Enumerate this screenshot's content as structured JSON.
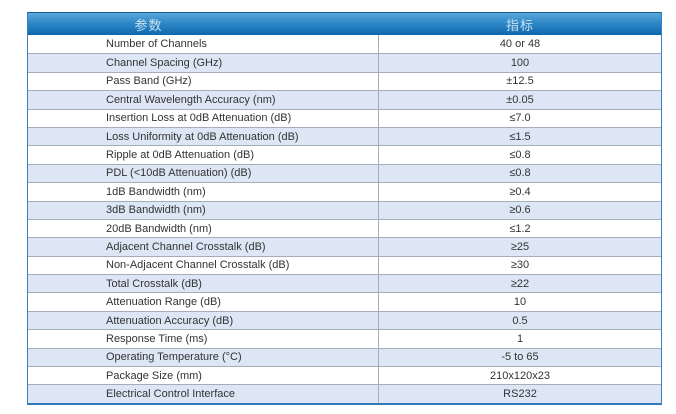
{
  "theme": {
    "header_gradient_top": "#58A8DA",
    "header_gradient_bottom": "#0D67AE",
    "header_top_line_color": "#1A5E97",
    "header_text_color": "#CCE2F2",
    "outer_border_color": "#3A80C0",
    "outer_border_bottom_color": "#2F7ABD",
    "row_bg": "#FFFFFF",
    "row_alt_bg": "#DCE6F5",
    "grid_line_color": "#A6ADB8",
    "text_color": "#333333"
  },
  "table": {
    "header": {
      "parameter_label": "参数",
      "value_label": "指标"
    },
    "rows": [
      {
        "parameter": "Number of Channels",
        "value": "40 or 48"
      },
      {
        "parameter": "Channel Spacing (GHz)",
        "value": "100"
      },
      {
        "parameter": "Pass Band (GHz)",
        "value": "±12.5"
      },
      {
        "parameter": "Central Wavelength Accuracy (nm)",
        "value": "±0.05"
      },
      {
        "parameter": "Insertion Loss at 0dB Attenuation (dB)",
        "value": "≤7.0"
      },
      {
        "parameter": "Loss Uniformity at 0dB Attenuation (dB)",
        "value": "≤1.5"
      },
      {
        "parameter": "Ripple at 0dB Attenuation (dB)",
        "value": "≤0.8"
      },
      {
        "parameter": "PDL (<10dB Attenuation) (dB)",
        "value": "≤0.8"
      },
      {
        "parameter": "1dB Bandwidth (nm)",
        "value": "≥0.4"
      },
      {
        "parameter": "3dB Bandwidth (nm)",
        "value": "≥0.6"
      },
      {
        "parameter": "20dB Bandwidth (nm)",
        "value": "≤1.2"
      },
      {
        "parameter": "Adjacent Channel Crosstalk (dB)",
        "value": "≥25"
      },
      {
        "parameter": "Non-Adjacent Channel Crosstalk (dB)",
        "value": "≥30"
      },
      {
        "parameter": "Total Crosstalk (dB)",
        "value": "≥22"
      },
      {
        "parameter": "Attenuation Range (dB)",
        "value": "10"
      },
      {
        "parameter": "Attenuation Accuracy (dB)",
        "value": "0.5"
      },
      {
        "parameter": "Response Time (ms)",
        "value": "1"
      },
      {
        "parameter": "Operating Temperature (°C)",
        "value": "-5 to 65"
      },
      {
        "parameter": "Package Size (mm)",
        "value": "210x120x23"
      },
      {
        "parameter": "Electrical Control Interface",
        "value": "RS232"
      }
    ]
  }
}
